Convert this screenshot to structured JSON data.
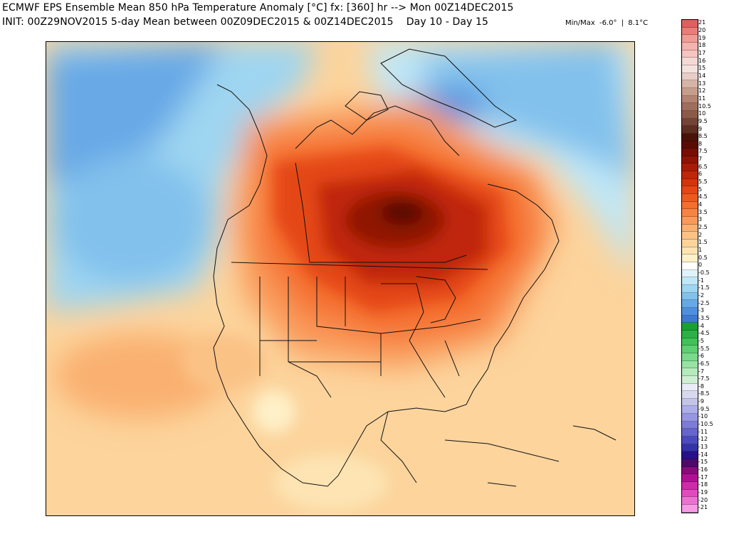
{
  "header": {
    "title_line": "ECMWF EPS Ensemble Mean 850 hPa Temperature Anomaly [°C] fx: [360] hr --> Mon 00Z14DEC2015",
    "init_line": "INIT: 00Z29NOV2015 5-day Mean between 00Z09DEC2015 & 00Z14DEC2015    Day 10 - Day 15",
    "minmax_label": "Min/Max",
    "min_value": "-6.0°",
    "separator": "|",
    "max_value": "8.1°C"
  },
  "legend": {
    "labels": [
      "21",
      "20",
      "19",
      "18",
      "17",
      "16",
      "15",
      "14",
      "13",
      "12",
      "11",
      "10.5",
      "10",
      "9.5",
      "9",
      "8.5",
      "8",
      "7.5",
      "7",
      "6.5",
      "6",
      "5.5",
      "5",
      "4.5",
      "4",
      "3.5",
      "3",
      "2.5",
      "2",
      "1.5",
      "1",
      "0.5",
      "0",
      "-0.5",
      "-1",
      "-1.5",
      "-2",
      "-2.5",
      "-3",
      "-3.5",
      "-4",
      "-4.5",
      "-5",
      "-5.5",
      "-6",
      "-6.5",
      "-7",
      "-7.5",
      "-8",
      "-8.5",
      "-9",
      "-9.5",
      "-10",
      "-10.5",
      "-11",
      "-12",
      "-13",
      "-14",
      "-15",
      "-16",
      "-17",
      "-18",
      "-19",
      "-20",
      "-21"
    ],
    "colors": [
      "#e06060",
      "#ea7d78",
      "#f09c96",
      "#f4b3ae",
      "#f6c5c1",
      "#f6d8d4",
      "#f4e2de",
      "#e8cec6",
      "#d8b4a6",
      "#c69d8a",
      "#b48472",
      "#a06e5c",
      "#8c5a48",
      "#744436",
      "#5e2e22",
      "#4a1208",
      "#5a0c04",
      "#760e04",
      "#901404",
      "#a81c06",
      "#c02608",
      "#d4340c",
      "#e44614",
      "#ee5a1e",
      "#f46e2e",
      "#f78442",
      "#f99a5a",
      "#fab070",
      "#fbc286",
      "#fcd49c",
      "#fde4b2",
      "#fef0c8",
      "#ffffff",
      "#dff3fb",
      "#bfe7f7",
      "#9ed5f1",
      "#82c1ec",
      "#67a9e6",
      "#4f90de",
      "#3e7ad4",
      "#1aa033",
      "#2cb146",
      "#40c259",
      "#5dcf72",
      "#7ad98b",
      "#98e2a4",
      "#b4eabc",
      "#ceefd2",
      "#ebebf7",
      "#d8d8ef",
      "#c4c4e9",
      "#adadea",
      "#9696e2",
      "#7d7dd8",
      "#6565cc",
      "#4b4bbe",
      "#3434a8",
      "#28108a",
      "#4c0a6a",
      "#8a0a7c",
      "#b21094",
      "#ce2aaa",
      "#e04cc0",
      "#ec72d2",
      "#f59ae3"
    ]
  }
}
